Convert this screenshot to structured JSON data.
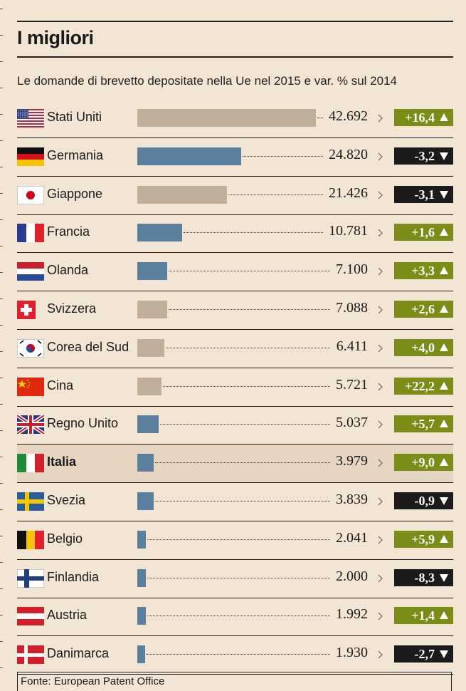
{
  "header": {
    "title": "I migliori",
    "subtitle": "Le domande di brevetto depositate nella Ue nel 2015 e var. % sul 2014"
  },
  "footer": {
    "source": "Fonte: European Patent Office"
  },
  "colors": {
    "bar_tan": "#bfae99",
    "bar_blue": "#5b809f",
    "badge_up": "#7b8c17",
    "badge_down": "#1b1b1b",
    "highlight_row": "#e6d6c1"
  },
  "chart_data": {
    "type": "bar",
    "orientation": "horizontal",
    "title": "I migliori",
    "subtitle": "Le domande di brevetto depositate nella Ue nel 2015 e var. % sul 2014",
    "xlim": [
      0,
      42692
    ],
    "highlight": "Italia",
    "rows": [
      {
        "country": "Stati Uniti",
        "flag": "us-flag-icon",
        "value": 42692,
        "value_label": "42.692",
        "change": 16.4,
        "change_label": "+16,4",
        "bar_color": "tan"
      },
      {
        "country": "Germania",
        "flag": "de-flag-icon",
        "value": 24820,
        "value_label": "24.820",
        "change": -3.2,
        "change_label": "-3,2",
        "bar_color": "blue"
      },
      {
        "country": "Giappone",
        "flag": "jp-flag-icon",
        "value": 21426,
        "value_label": "21.426",
        "change": -3.1,
        "change_label": "-3,1",
        "bar_color": "tan"
      },
      {
        "country": "Francia",
        "flag": "fr-flag-icon",
        "value": 10781,
        "value_label": "10.781",
        "change": 1.6,
        "change_label": "+1,6",
        "bar_color": "blue"
      },
      {
        "country": "Olanda",
        "flag": "nl-flag-icon",
        "value": 7100,
        "value_label": "7.100",
        "change": 3.3,
        "change_label": "+3,3",
        "bar_color": "blue"
      },
      {
        "country": "Svizzera",
        "flag": "ch-flag-icon",
        "value": 7088,
        "value_label": "7.088",
        "change": 2.6,
        "change_label": "+2,6",
        "bar_color": "tan"
      },
      {
        "country": "Corea del Sud",
        "flag": "kr-flag-icon",
        "value": 6411,
        "value_label": "6.411",
        "change": 4.0,
        "change_label": "+4,0",
        "bar_color": "tan"
      },
      {
        "country": "Cina",
        "flag": "cn-flag-icon",
        "value": 5721,
        "value_label": "5.721",
        "change": 22.2,
        "change_label": "+22,2",
        "bar_color": "tan"
      },
      {
        "country": "Regno Unito",
        "flag": "uk-flag-icon",
        "value": 5037,
        "value_label": "5.037",
        "change": 5.7,
        "change_label": "+5,7",
        "bar_color": "blue"
      },
      {
        "country": "Italia",
        "flag": "it-flag-icon",
        "value": 3979,
        "value_label": "3.979",
        "change": 9.0,
        "change_label": "+9,0",
        "bar_color": "blue"
      },
      {
        "country": "Svezia",
        "flag": "se-flag-icon",
        "value": 3839,
        "value_label": "3.839",
        "change": -0.9,
        "change_label": "-0,9",
        "bar_color": "blue"
      },
      {
        "country": "Belgio",
        "flag": "be-flag-icon",
        "value": 2041,
        "value_label": "2.041",
        "change": 5.9,
        "change_label": "+5,9",
        "bar_color": "blue"
      },
      {
        "country": "Finlandia",
        "flag": "fi-flag-icon",
        "value": 2000,
        "value_label": "2.000",
        "change": -8.3,
        "change_label": "-8,3",
        "bar_color": "blue"
      },
      {
        "country": "Austria",
        "flag": "at-flag-icon",
        "value": 1992,
        "value_label": "1.992",
        "change": 1.4,
        "change_label": "+1,4",
        "bar_color": "blue"
      },
      {
        "country": "Danimarca",
        "flag": "dk-flag-icon",
        "value": 1930,
        "value_label": "1.930",
        "change": -2.7,
        "change_label": "-2,7",
        "bar_color": "blue"
      }
    ]
  }
}
